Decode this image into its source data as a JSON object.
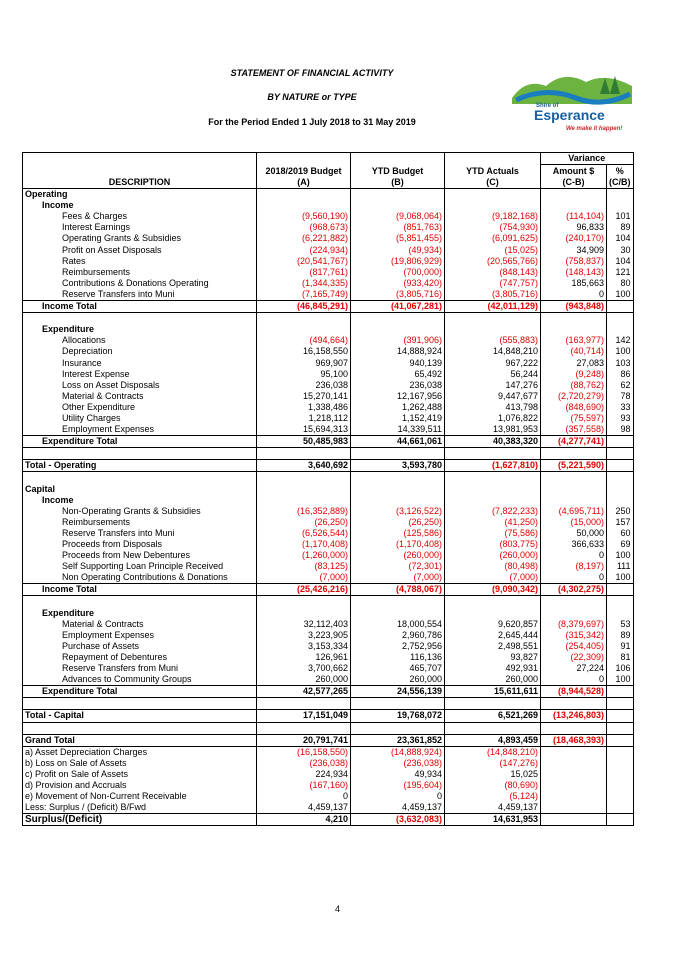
{
  "header": {
    "title": "STATEMENT OF FINANCIAL ACTIVITY",
    "subtitle": "BY NATURE or TYPE",
    "period": "For the Period Ended 1 July 2018 to 31 May 2019"
  },
  "logo": {
    "prefix": "Shire of",
    "name": "Esperance",
    "tagline": "We make it happen!"
  },
  "table": {
    "variance": "Variance",
    "columns": [
      {
        "name": "DESCRIPTION"
      },
      {
        "name": "2018/2019 Budget",
        "ref": "(A)"
      },
      {
        "name": "YTD Budget",
        "ref": "(B)"
      },
      {
        "name": "YTD Actuals",
        "ref": "(C)"
      },
      {
        "name": "Amount $",
        "ref": "(C-B)"
      },
      {
        "name": "%",
        "ref": "(C/B)"
      }
    ],
    "sections": [
      {
        "title": "Operating",
        "groups": [
          {
            "title": "Income",
            "items": [
              {
                "label": "Fees & Charges",
                "values": [
                  "(9,560,190)",
                  "(9,068,064)",
                  "(9,182,168)",
                  "(114,104)",
                  "101"
                ]
              },
              {
                "label": "Interest Earnings",
                "values": [
                  "(968,673)",
                  "(851,763)",
                  "(754,930)",
                  "96,833",
                  "89"
                ]
              },
              {
                "label": "Operating Grants & Subsidies",
                "values": [
                  "(6,221,882)",
                  "(5,851,455)",
                  "(6,091,625)",
                  "(240,170)",
                  "104"
                ]
              },
              {
                "label": "Profit on Asset Disposals",
                "values": [
                  "(224,934)",
                  "(49,934)",
                  "(15,025)",
                  "34,909",
                  "30"
                ]
              },
              {
                "label": "Rates",
                "values": [
                  "(20,541,767)",
                  "(19,806,929)",
                  "(20,565,766)",
                  "(758,837)",
                  "104"
                ]
              },
              {
                "label": "Reimbursements",
                "values": [
                  "(817,761)",
                  "(700,000)",
                  "(848,143)",
                  "(148,143)",
                  "121"
                ]
              },
              {
                "label": "Contributions & Donations Operating",
                "values": [
                  "(1,344,335)",
                  "(933,420)",
                  "(747,757)",
                  "185,663",
                  "80"
                ]
              },
              {
                "label": "Reserve Transfers into Muni",
                "values": [
                  "(7,165,749)",
                  "(3,805,716)",
                  "(3,805,716)",
                  "0",
                  "100"
                ]
              }
            ],
            "total": {
              "label": "Income Total",
              "values": [
                "(46,845,291)",
                "(41,067,281)",
                "(42,011,129)",
                "(943,848)"
              ]
            }
          },
          {
            "title": "Expenditure",
            "items": [
              {
                "label": "Allocations",
                "values": [
                  "(494,664)",
                  "(391,906)",
                  "(555,883)",
                  "(163,977)",
                  "142"
                ]
              },
              {
                "label": "Depreciation",
                "values": [
                  "16,158,550",
                  "14,888,924",
                  "14,848,210",
                  "(40,714)",
                  "100"
                ]
              },
              {
                "label": "Insurance",
                "values": [
                  "969,907",
                  "940,139",
                  "967,222",
                  "27,083",
                  "103"
                ]
              },
              {
                "label": "Interest Expense",
                "values": [
                  "95,100",
                  "65,492",
                  "56,244",
                  "(9,248)",
                  "86"
                ]
              },
              {
                "label": "Loss on Asset Disposals",
                "values": [
                  "236,038",
                  "236,038",
                  "147,276",
                  "(88,762)",
                  "62"
                ]
              },
              {
                "label": "Material & Contracts",
                "values": [
                  "15,270,141",
                  "12,167,956",
                  "9,447,677",
                  "(2,720,279)",
                  "78"
                ]
              },
              {
                "label": "Other Expenditure",
                "values": [
                  "1,338,486",
                  "1,262,488",
                  "413,798",
                  "(848,690)",
                  "33"
                ]
              },
              {
                "label": "Utility Charges",
                "values": [
                  "1,218,112",
                  "1,152,419",
                  "1,076,822",
                  "(75,597)",
                  "93"
                ]
              },
              {
                "label": "Employment Expenses",
                "values": [
                  "15,694,313",
                  "14,339,511",
                  "13,981,953",
                  "(357,558)",
                  "98"
                ]
              }
            ],
            "total": {
              "label": "Expenditure Total",
              "values": [
                "50,485,983",
                "44,661,061",
                "40,383,320",
                "(4,277,741)"
              ]
            }
          }
        ],
        "total": {
          "label": "Total - Operating",
          "values": [
            "3,640,692",
            "3,593,780",
            "(1,627,810)",
            "(5,221,590)"
          ]
        }
      },
      {
        "title": "Capital",
        "groups": [
          {
            "title": "Income",
            "items": [
              {
                "label": "Non-Operating Grants & Subsidies",
                "values": [
                  "(16,352,889)",
                  "(3,126,522)",
                  "(7,822,233)",
                  "(4,695,711)",
                  "250"
                ]
              },
              {
                "label": "Reimbursements",
                "values": [
                  "(26,250)",
                  "(26,250)",
                  "(41,250)",
                  "(15,000)",
                  "157"
                ]
              },
              {
                "label": "Reserve Transfers into Muni",
                "values": [
                  "(6,526,544)",
                  "(125,586)",
                  "(75,586)",
                  "50,000",
                  "60"
                ]
              },
              {
                "label": "Proceeds from Disposals",
                "values": [
                  "(1,170,408)",
                  "(1,170,408)",
                  "(803,775)",
                  "366,633",
                  "69"
                ]
              },
              {
                "label": "Proceeds from New Debentures",
                "values": [
                  "(1,260,000)",
                  "(260,000)",
                  "(260,000)",
                  "0",
                  "100"
                ]
              },
              {
                "label": "Self Supporting Loan Principle Received",
                "values": [
                  "(83,125)",
                  "(72,301)",
                  "(80,498)",
                  "(8,197)",
                  "111"
                ]
              },
              {
                "label": "Non Operating Contributions & Donations",
                "values": [
                  "(7,000)",
                  "(7,000)",
                  "(7,000)",
                  "0",
                  "100"
                ]
              }
            ],
            "total": {
              "label": "Income Total",
              "values": [
                "(25,426,216)",
                "(4,788,067)",
                "(9,090,342)",
                "(4,302,275)"
              ]
            }
          },
          {
            "title": "Expenditure",
            "items": [
              {
                "label": "Material & Contracts",
                "values": [
                  "32,112,403",
                  "18,000,554",
                  "9,620,857",
                  "(8,379,697)",
                  "53"
                ]
              },
              {
                "label": "Employment Expenses",
                "values": [
                  "3,223,905",
                  "2,960,786",
                  "2,645,444",
                  "(315,342)",
                  "89"
                ]
              },
              {
                "label": "Purchase of Assets",
                "values": [
                  "3,153,334",
                  "2,752,956",
                  "2,498,551",
                  "(254,405)",
                  "91"
                ]
              },
              {
                "label": "Repayment of Debentures",
                "values": [
                  "126,961",
                  "116,136",
                  "93,827",
                  "(22,309)",
                  "81"
                ]
              },
              {
                "label": "Reserve Transfers from Muni",
                "values": [
                  "3,700,662",
                  "465,707",
                  "492,931",
                  "27,224",
                  "106"
                ]
              },
              {
                "label": "Advances to Community Groups",
                "values": [
                  "260,000",
                  "260,000",
                  "260,000",
                  "0",
                  "100"
                ]
              }
            ],
            "total": {
              "label": "Expenditure Total",
              "values": [
                "42,577,265",
                "24,556,139",
                "15,611,611",
                "(8,944,528)"
              ]
            }
          }
        ],
        "total": {
          "label": "Total - Capital",
          "values": [
            "17,151,049",
            "19,768,072",
            "6,521,269",
            "(13,246,803)"
          ]
        }
      }
    ],
    "grand_total": {
      "label": "Grand Total",
      "values": [
        "20,791,741",
        "23,361,852",
        "4,893,459",
        "(18,468,393)"
      ]
    },
    "adjustments": [
      {
        "label": "a) Asset Depreciation Charges",
        "values": [
          "(16,158,550)",
          "(14,888,924)",
          "(14,848,210)"
        ]
      },
      {
        "label": "b) Loss on Sale of Assets",
        "values": [
          "(236,038)",
          "(236,038)",
          "(147,276)"
        ]
      },
      {
        "label": "c) Profit on Sale of Assets",
        "values": [
          "224,934",
          "49,934",
          "15,025"
        ]
      },
      {
        "label": "d) Provision and Accruals",
        "values": [
          "(167,160)",
          "(195,604)",
          "(80,690)"
        ]
      },
      {
        "label": "e) Movement of Non-Current Receivable",
        "values": [
          "0",
          "0",
          "(5,124)"
        ]
      },
      {
        "label": "Less: Surplus / (Deficit) B/Fwd",
        "values": [
          "4,459,137",
          "4,459,137",
          "4,459,137"
        ]
      }
    ],
    "surplus": {
      "label": "Surplus/(Deficit)",
      "values": [
        "4,210",
        "(3,632,083)",
        "14,631,953"
      ]
    }
  },
  "page_number": "4"
}
